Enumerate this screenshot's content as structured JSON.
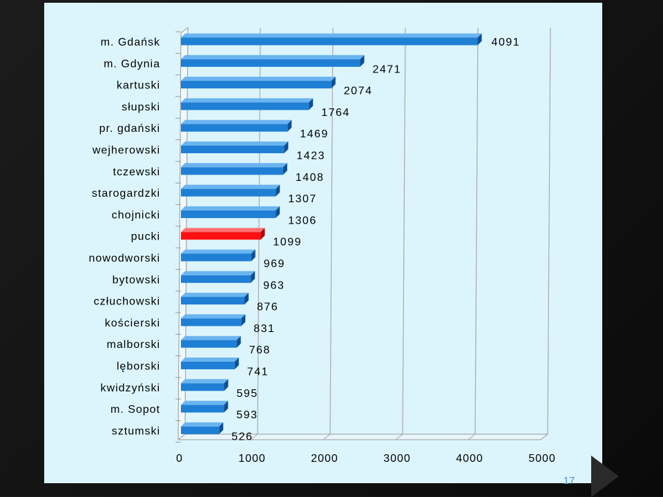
{
  "slide": {
    "page_number": "17"
  },
  "colors": {
    "bar": "#1f7fd4",
    "bar_highlight": "#ff1010",
    "panel": "#dcf5fc",
    "axis_text": "#000000"
  },
  "chart_data": {
    "type": "bar",
    "orientation": "horizontal",
    "categories": [
      "m. Gdańsk",
      "m. Gdynia",
      "kartuski",
      "słupski",
      "pr. gdański",
      "wejherowski",
      "tczewski",
      "starogardzki",
      "chojnicki",
      "pucki",
      "nowodworski",
      "bytowski",
      "człuchowski",
      "kościerski",
      "malborski",
      "lęborski",
      "kwidzyński",
      "m. Sopot",
      "sztumski"
    ],
    "values": [
      4091,
      2471,
      2074,
      1764,
      1469,
      1423,
      1408,
      1307,
      1306,
      1099,
      969,
      963,
      876,
      831,
      768,
      741,
      595,
      593,
      526
    ],
    "data_labels": [
      "4091",
      "2471",
      "2074",
      "1764",
      "1469",
      "1423",
      "1408",
      "1307",
      "1306",
      "1099",
      "969",
      "963",
      "876",
      "831",
      "768",
      "741",
      "595",
      "593",
      "526"
    ],
    "highlight_category": "pucki",
    "xlim": [
      0,
      5000
    ],
    "xticks": [
      "0",
      "1000",
      "2000",
      "3000",
      "4000",
      "5000"
    ],
    "grid": true,
    "style": "3d"
  }
}
